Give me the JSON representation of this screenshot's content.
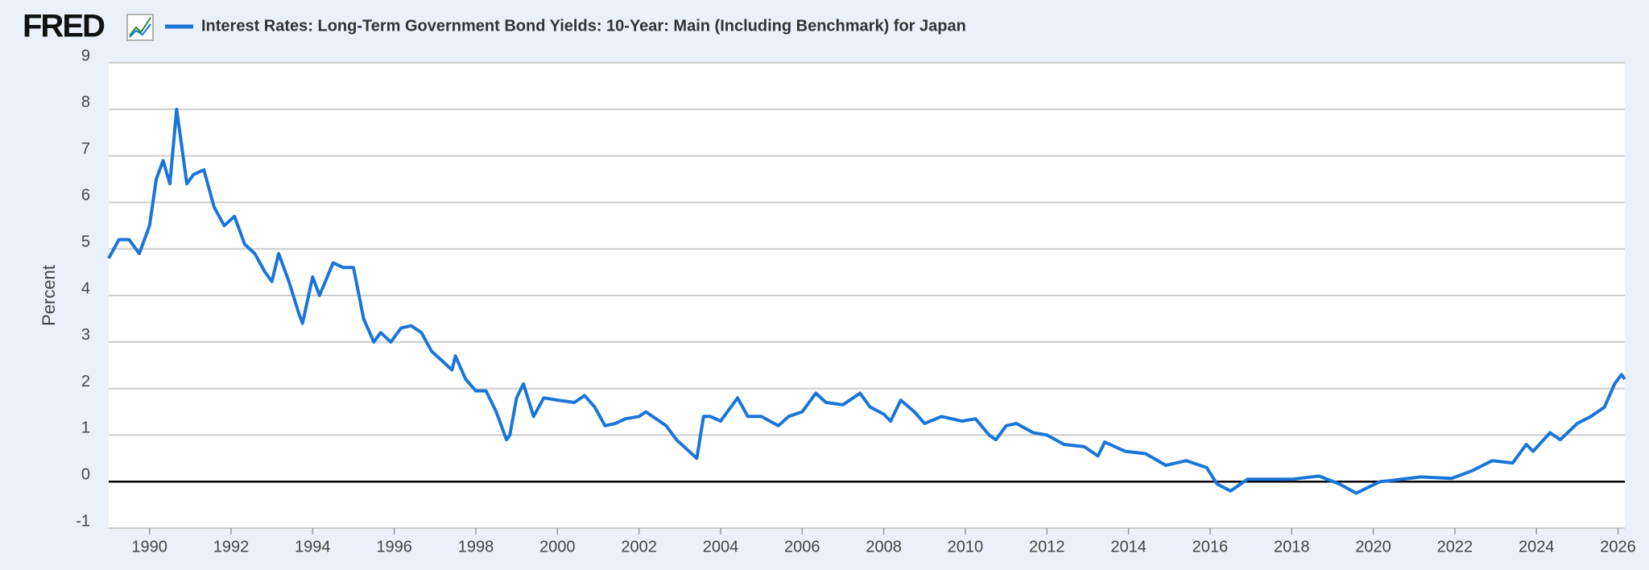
{
  "logo": "FRED",
  "chart_data": {
    "type": "line",
    "y_label": "Percent",
    "x": [
      "1989-01",
      "1989-04",
      "1989-07",
      "1989-10",
      "1990-01",
      "1990-03",
      "1990-05",
      "1990-07",
      "1990-09",
      "1990-12",
      "1991-02",
      "1991-05",
      "1991-08",
      "1991-11",
      "1992-02",
      "1992-05",
      "1992-08",
      "1992-11",
      "1993-01",
      "1993-03",
      "1993-06",
      "1993-09",
      "1993-10",
      "1994-01",
      "1994-03",
      "1994-07",
      "1994-10",
      "1995-01",
      "1995-04",
      "1995-07",
      "1995-09",
      "1995-12",
      "1996-03",
      "1996-06",
      "1996-09",
      "1996-12",
      "1997-03",
      "1997-06",
      "1997-07",
      "1997-10",
      "1998-01",
      "1998-04",
      "1998-07",
      "1998-10",
      "1998-11",
      "1999-01",
      "1999-03",
      "1999-06",
      "1999-09",
      "2000-01",
      "2000-06",
      "2000-09",
      "2000-12",
      "2001-03",
      "2001-06",
      "2001-09",
      "2002-01",
      "2002-03",
      "2002-09",
      "2002-12",
      "2003-03",
      "2003-06",
      "2003-08",
      "2003-10",
      "2004-01",
      "2004-03",
      "2004-06",
      "2004-09",
      "2005-01",
      "2005-06",
      "2005-09",
      "2006-01",
      "2006-05",
      "2006-08",
      "2007-01",
      "2007-06",
      "2007-09",
      "2008-01",
      "2008-03",
      "2008-06",
      "2008-10",
      "2009-01",
      "2009-06",
      "2009-12",
      "2010-04",
      "2010-08",
      "2010-10",
      "2011-01",
      "2011-04",
      "2011-09",
      "2012-01",
      "2012-06",
      "2012-12",
      "2013-04",
      "2013-06",
      "2013-12",
      "2014-06",
      "2014-12",
      "2015-06",
      "2015-12",
      "2016-03",
      "2016-07",
      "2016-12",
      "2017-06",
      "2018-01",
      "2018-09",
      "2019-03",
      "2019-08",
      "2020-03",
      "2020-06",
      "2021-03",
      "2021-12",
      "2022-06",
      "2022-12",
      "2023-06",
      "2023-10",
      "2023-12",
      "2024-05",
      "2024-08",
      "2025-01",
      "2025-05",
      "2025-09",
      "2025-12",
      "2026-02",
      "2026-03"
    ],
    "series": [
      {
        "name": "Interest Rates: Long-Term Government Bond Yields: 10-Year: Main (Including Benchmark) for Japan",
        "color": "#1a75d8",
        "values": [
          4.8,
          5.2,
          5.2,
          4.9,
          5.5,
          6.5,
          6.9,
          6.4,
          8.0,
          6.4,
          6.6,
          6.7,
          5.9,
          5.5,
          5.7,
          5.1,
          4.9,
          4.5,
          4.3,
          4.9,
          4.3,
          3.6,
          3.4,
          4.4,
          4.0,
          4.7,
          4.6,
          4.6,
          3.5,
          3.0,
          3.2,
          3.0,
          3.3,
          3.35,
          3.2,
          2.8,
          2.6,
          2.4,
          2.7,
          2.2,
          1.95,
          1.95,
          1.5,
          0.9,
          1.0,
          1.8,
          2.1,
          1.4,
          1.8,
          1.75,
          1.7,
          1.85,
          1.6,
          1.2,
          1.25,
          1.35,
          1.4,
          1.5,
          1.2,
          0.9,
          0.7,
          0.5,
          1.4,
          1.4,
          1.3,
          1.5,
          1.8,
          1.4,
          1.4,
          1.2,
          1.4,
          1.5,
          1.9,
          1.7,
          1.65,
          1.9,
          1.6,
          1.45,
          1.3,
          1.75,
          1.5,
          1.25,
          1.4,
          1.3,
          1.35,
          1.0,
          0.9,
          1.2,
          1.25,
          1.05,
          1.0,
          0.8,
          0.75,
          0.55,
          0.85,
          0.65,
          0.6,
          0.35,
          0.45,
          0.3,
          -0.05,
          -0.2,
          0.05,
          0.05,
          0.05,
          0.12,
          -0.05,
          -0.25,
          0.0,
          0.02,
          0.1,
          0.07,
          0.23,
          0.45,
          0.4,
          0.8,
          0.65,
          1.05,
          0.9,
          1.25,
          1.4,
          1.6,
          2.1,
          2.3,
          2.2
        ]
      }
    ],
    "xlim": [
      "1989-01",
      "2026-03"
    ],
    "xticks": [
      "1990",
      "1992",
      "1994",
      "1996",
      "1998",
      "2000",
      "2002",
      "2004",
      "2006",
      "2008",
      "2010",
      "2012",
      "2014",
      "2016",
      "2018",
      "2020",
      "2022",
      "2024",
      "2026"
    ],
    "ylim": [
      -1,
      9
    ],
    "yticks": [
      -1,
      0,
      1,
      2,
      3,
      4,
      5,
      6,
      7,
      8,
      9
    ],
    "grid": true
  }
}
